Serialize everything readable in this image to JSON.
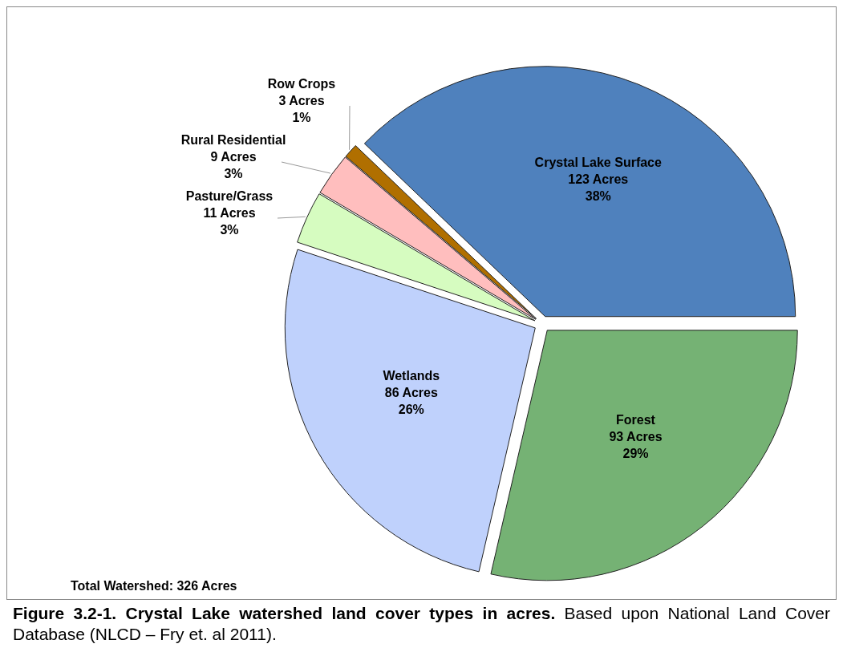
{
  "chart_data": {
    "type": "pie",
    "title": "Figure 3.2-1.  Crystal Lake watershed land cover types in acres.",
    "subtitle": "Based upon National Land Cover Database (NLCD – Fry et. al 2011).",
    "categories": [
      "Crystal Lake Surface",
      "Forest",
      "Wetlands",
      "Pasture/Grass",
      "Rural Residential",
      "Row Crops"
    ],
    "values": [
      123,
      93,
      86,
      11,
      9,
      3
    ],
    "colors": [
      "#4f81bd",
      "#75b274",
      "#bfd1fc",
      "#d6fcc0",
      "#ffbebe",
      "#b06f00"
    ],
    "value_labels": [
      "123 Acres\n38%",
      "93 Acres\n29%",
      "86 Acres\n26%",
      "11 Acres\n3%",
      "9 Acres\n3%",
      "3 Acres\n1%"
    ],
    "annotations": [
      "Total Watershed: 326 Acres"
    ]
  }
}
